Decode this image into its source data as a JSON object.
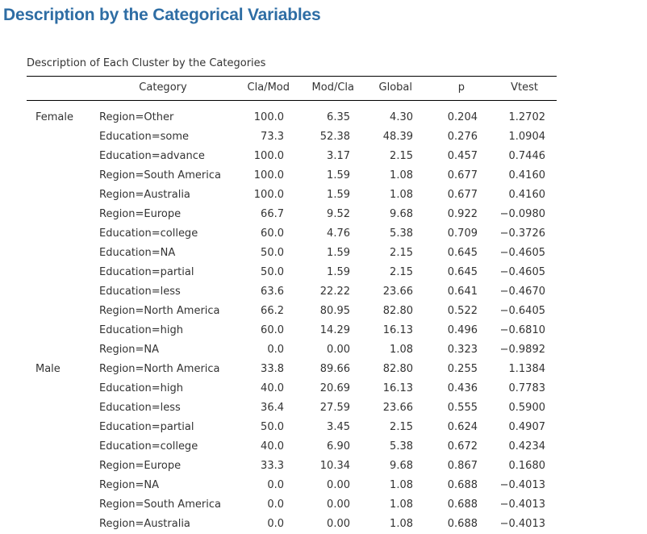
{
  "heading": "Description by the Categorical Variables",
  "caption": "Description of Each Cluster by the Categories",
  "columns": {
    "category": "Category",
    "cla_mod": "Cla/Mod",
    "mod_cla": "Mod/Cla",
    "global": "Global",
    "p": "p",
    "vtest": "Vtest"
  },
  "rows": [
    {
      "group": "Female",
      "category": "Region=Other",
      "cla_mod": "100.0",
      "mod_cla": "6.35",
      "global": "4.30",
      "p": "0.204",
      "vtest": "1.2702"
    },
    {
      "group": "",
      "category": "Education=some",
      "cla_mod": "73.3",
      "mod_cla": "52.38",
      "global": "48.39",
      "p": "0.276",
      "vtest": "1.0904"
    },
    {
      "group": "",
      "category": "Education=advance",
      "cla_mod": "100.0",
      "mod_cla": "3.17",
      "global": "2.15",
      "p": "0.457",
      "vtest": "0.7446"
    },
    {
      "group": "",
      "category": "Region=South America",
      "cla_mod": "100.0",
      "mod_cla": "1.59",
      "global": "1.08",
      "p": "0.677",
      "vtest": "0.4160"
    },
    {
      "group": "",
      "category": "Region=Australia",
      "cla_mod": "100.0",
      "mod_cla": "1.59",
      "global": "1.08",
      "p": "0.677",
      "vtest": "0.4160"
    },
    {
      "group": "",
      "category": "Region=Europe",
      "cla_mod": "66.7",
      "mod_cla": "9.52",
      "global": "9.68",
      "p": "0.922",
      "vtest": "−0.0980"
    },
    {
      "group": "",
      "category": "Education=college",
      "cla_mod": "60.0",
      "mod_cla": "4.76",
      "global": "5.38",
      "p": "0.709",
      "vtest": "−0.3726"
    },
    {
      "group": "",
      "category": "Education=NA",
      "cla_mod": "50.0",
      "mod_cla": "1.59",
      "global": "2.15",
      "p": "0.645",
      "vtest": "−0.4605"
    },
    {
      "group": "",
      "category": "Education=partial",
      "cla_mod": "50.0",
      "mod_cla": "1.59",
      "global": "2.15",
      "p": "0.645",
      "vtest": "−0.4605"
    },
    {
      "group": "",
      "category": "Education=less",
      "cla_mod": "63.6",
      "mod_cla": "22.22",
      "global": "23.66",
      "p": "0.641",
      "vtest": "−0.4670"
    },
    {
      "group": "",
      "category": "Region=North America",
      "cla_mod": "66.2",
      "mod_cla": "80.95",
      "global": "82.80",
      "p": "0.522",
      "vtest": "−0.6405"
    },
    {
      "group": "",
      "category": "Education=high",
      "cla_mod": "60.0",
      "mod_cla": "14.29",
      "global": "16.13",
      "p": "0.496",
      "vtest": "−0.6810"
    },
    {
      "group": "",
      "category": "Region=NA",
      "cla_mod": "0.0",
      "mod_cla": "0.00",
      "global": "1.08",
      "p": "0.323",
      "vtest": "−0.9892"
    },
    {
      "group": "Male",
      "category": "Region=North America",
      "cla_mod": "33.8",
      "mod_cla": "89.66",
      "global": "82.80",
      "p": "0.255",
      "vtest": "1.1384"
    },
    {
      "group": "",
      "category": "Education=high",
      "cla_mod": "40.0",
      "mod_cla": "20.69",
      "global": "16.13",
      "p": "0.436",
      "vtest": "0.7783"
    },
    {
      "group": "",
      "category": "Education=less",
      "cla_mod": "36.4",
      "mod_cla": "27.59",
      "global": "23.66",
      "p": "0.555",
      "vtest": "0.5900"
    },
    {
      "group": "",
      "category": "Education=partial",
      "cla_mod": "50.0",
      "mod_cla": "3.45",
      "global": "2.15",
      "p": "0.624",
      "vtest": "0.4907"
    },
    {
      "group": "",
      "category": "Education=college",
      "cla_mod": "40.0",
      "mod_cla": "6.90",
      "global": "5.38",
      "p": "0.672",
      "vtest": "0.4234"
    },
    {
      "group": "",
      "category": "Region=Europe",
      "cla_mod": "33.3",
      "mod_cla": "10.34",
      "global": "9.68",
      "p": "0.867",
      "vtest": "0.1680"
    },
    {
      "group": "",
      "category": "Region=NA",
      "cla_mod": "0.0",
      "mod_cla": "0.00",
      "global": "1.08",
      "p": "0.688",
      "vtest": "−0.4013"
    },
    {
      "group": "",
      "category": "Region=South America",
      "cla_mod": "0.0",
      "mod_cla": "0.00",
      "global": "1.08",
      "p": "0.688",
      "vtest": "−0.4013"
    },
    {
      "group": "",
      "category": "Region=Australia",
      "cla_mod": "0.0",
      "mod_cla": "0.00",
      "global": "1.08",
      "p": "0.688",
      "vtest": "−0.4013"
    }
  ]
}
